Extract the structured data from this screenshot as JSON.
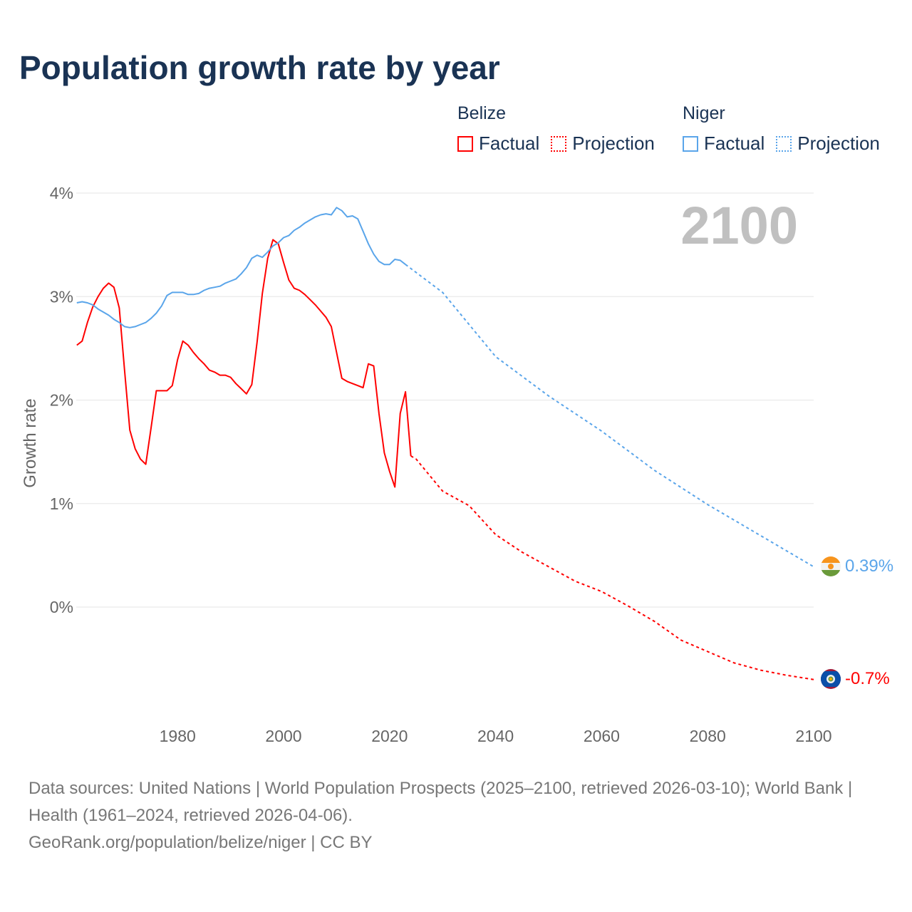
{
  "title": "Population growth rate by year",
  "legend": {
    "groups": [
      {
        "name": "Belize",
        "factual": "Factual",
        "projection": "Projection",
        "color": "#ff0000"
      },
      {
        "name": "Niger",
        "factual": "Factual",
        "projection": "Projection",
        "color": "#5aa5ea"
      }
    ]
  },
  "year_watermark": "2100",
  "footer": {
    "sources": "Data sources: United Nations | World Population Prospects (2025–2100, retrieved 2026-03-10); World Bank | Health (1961–2024, retrieved 2026-04-06).",
    "credit": "GeoRank.org/population/belize/niger | CC BY"
  },
  "chart_data": {
    "type": "line",
    "title": "Population growth rate by year",
    "xlabel": "",
    "ylabel": "Growth rate",
    "xlim": [
      1961,
      2100
    ],
    "ylim": [
      -1.1,
      4.0
    ],
    "x_ticks": [
      1980,
      2000,
      2020,
      2040,
      2060,
      2080,
      2100
    ],
    "y_ticks": [
      0,
      1,
      2,
      3,
      4
    ],
    "y_tick_labels": [
      "0%",
      "1%",
      "2%",
      "3%",
      "4%"
    ],
    "grid": true,
    "legend_position": "top-right",
    "end_labels": {
      "Niger": "0.39%",
      "Belize": "-0.7%"
    },
    "series": [
      {
        "name": "Belize Factual",
        "color": "#ff0000",
        "style": "solid",
        "x_start": 1961,
        "values": [
          2.53,
          2.57,
          2.75,
          2.9,
          3.0,
          3.08,
          3.13,
          3.09,
          2.89,
          2.29,
          1.71,
          1.53,
          1.43,
          1.38,
          1.73,
          2.09,
          2.09,
          2.09,
          2.14,
          2.39,
          2.57,
          2.53,
          2.46,
          2.4,
          2.35,
          2.29,
          2.27,
          2.24,
          2.24,
          2.22,
          2.16,
          2.11,
          2.06,
          2.15,
          2.56,
          3.03,
          3.37,
          3.55,
          3.51,
          3.33,
          3.16,
          3.08,
          3.06,
          3.02,
          2.97,
          2.92,
          2.86,
          2.8,
          2.71,
          2.46,
          2.21,
          2.18,
          2.16,
          2.14,
          2.12,
          2.35,
          2.33,
          1.87,
          1.49,
          1.31,
          1.16,
          1.87,
          2.08,
          1.46
        ]
      },
      {
        "name": "Belize Projection",
        "color": "#ff0000",
        "style": "dotted",
        "x": [
          2024,
          2025,
          2030,
          2035,
          2040,
          2045,
          2050,
          2055,
          2060,
          2065,
          2070,
          2075,
          2080,
          2085,
          2090,
          2095,
          2100
        ],
        "values": [
          1.46,
          1.43,
          1.12,
          0.98,
          0.7,
          0.53,
          0.39,
          0.25,
          0.15,
          0.01,
          -0.14,
          -0.32,
          -0.43,
          -0.54,
          -0.61,
          -0.66,
          -0.7
        ]
      },
      {
        "name": "Niger Factual",
        "color": "#5aa5ea",
        "style": "solid",
        "x_start": 1961,
        "values": [
          2.94,
          2.95,
          2.94,
          2.92,
          2.88,
          2.85,
          2.82,
          2.78,
          2.75,
          2.71,
          2.7,
          2.71,
          2.73,
          2.75,
          2.79,
          2.84,
          2.91,
          3.01,
          3.04,
          3.04,
          3.04,
          3.02,
          3.02,
          3.03,
          3.06,
          3.08,
          3.09,
          3.1,
          3.13,
          3.15,
          3.17,
          3.22,
          3.28,
          3.37,
          3.4,
          3.38,
          3.43,
          3.49,
          3.52,
          3.57,
          3.59,
          3.64,
          3.67,
          3.71,
          3.74,
          3.77,
          3.79,
          3.8,
          3.79,
          3.86,
          3.83,
          3.77,
          3.78,
          3.75,
          3.63,
          3.51,
          3.41,
          3.34,
          3.31,
          3.31,
          3.36,
          3.35,
          3.31
        ]
      },
      {
        "name": "Niger Projection",
        "color": "#5aa5ea",
        "style": "dotted",
        "x": [
          2023,
          2030,
          2040,
          2050,
          2060,
          2070,
          2080,
          2090,
          2100
        ],
        "values": [
          3.31,
          3.04,
          2.42,
          2.04,
          1.7,
          1.32,
          0.99,
          0.69,
          0.39
        ]
      }
    ]
  }
}
